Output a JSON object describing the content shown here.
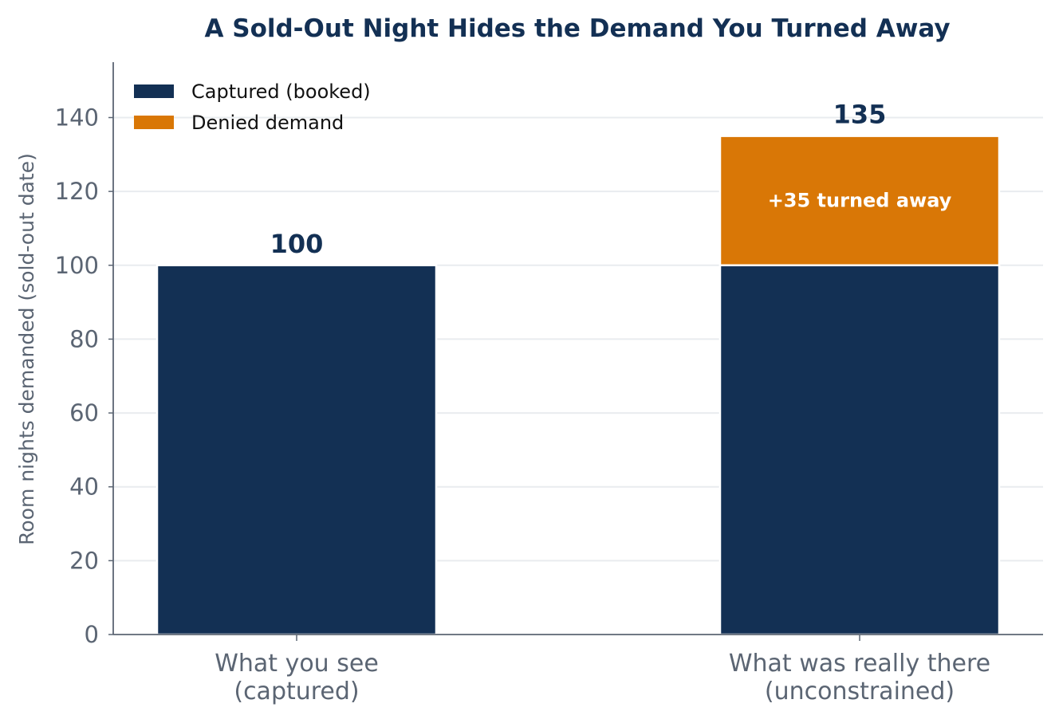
{
  "chart_data": {
    "type": "bar",
    "stacked": true,
    "title": "A Sold-Out Night Hides the Demand You Turned Away",
    "ylabel": "Room nights demanded (sold-out date)",
    "xlabel": "",
    "ylim": [
      0,
      155
    ],
    "yticks": [
      0,
      20,
      40,
      60,
      80,
      100,
      120,
      140
    ],
    "grid": "horizontal",
    "legend_position": "top-left",
    "categories": [
      [
        "What you see",
        "(captured)"
      ],
      [
        "What was really there",
        "(unconstrained)"
      ]
    ],
    "series": [
      {
        "name": "Captured (booked)",
        "values": [
          100,
          100
        ],
        "color": "#133054"
      },
      {
        "name": "Denied demand",
        "values": [
          0,
          35
        ],
        "color": "#d97706"
      }
    ],
    "totals": [
      "100",
      "135"
    ],
    "segment_annotations": [
      {
        "category_index": 1,
        "series_index": 1,
        "text": "+35 turned away",
        "color": "#ffffff"
      }
    ],
    "colors": {
      "title": "#133054",
      "axis": "#5b6573",
      "grid": "#e9ecef",
      "total_label": "#133054"
    }
  }
}
